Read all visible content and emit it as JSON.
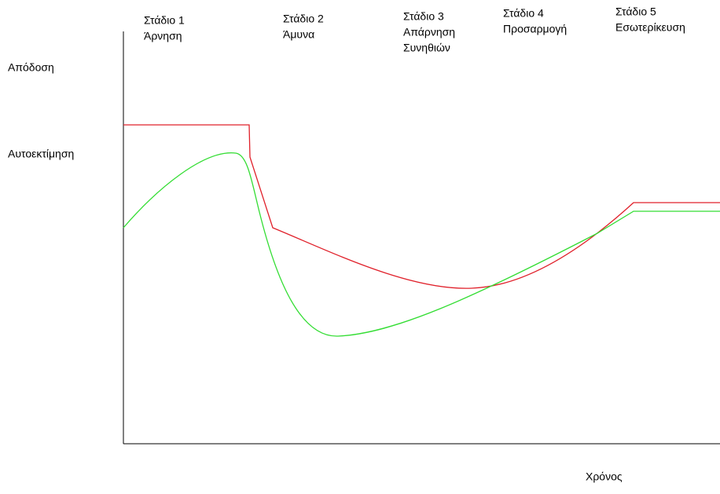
{
  "y_labels": [
    "Απόδοση",
    "Αυτοεκτίμηση"
  ],
  "x_label": "Χρόνος",
  "stages": [
    {
      "lines": [
        "Στάδιο 1",
        "Άρνηση"
      ]
    },
    {
      "lines": [
        "Στάδιο 2",
        "Άμυνα"
      ]
    },
    {
      "lines": [
        "Στάδιο 3",
        "Απάρνηση",
        "Συνηθιών"
      ]
    },
    {
      "lines": [
        "Στάδιο 4",
        "Προσαρμογή"
      ]
    },
    {
      "lines": [
        "Στάδιο 5",
        "Εσωτερίκευση"
      ]
    }
  ]
}
